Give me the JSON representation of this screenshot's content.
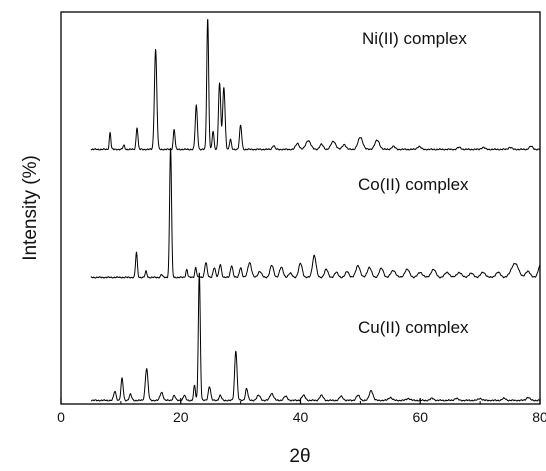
{
  "chart_data": {
    "type": "line",
    "title": "",
    "xlabel": "2θ",
    "ylabel": "Intensity (%)",
    "xlim": [
      0,
      80
    ],
    "xticks": [
      0,
      20,
      40,
      60,
      80
    ],
    "y_ticks_shown": false,
    "grid": false,
    "legend": "none (series labels placed above each trace)",
    "series": [
      {
        "name": "Ni(II) complex",
        "color": "#000000",
        "baseline": 150,
        "x_start": 5,
        "x_end": 80,
        "peaks": [
          [
            8.2,
            17,
            0.13
          ],
          [
            10.5,
            4,
            0.15
          ],
          [
            12.7,
            22,
            0.15
          ],
          [
            15.8,
            100,
            0.2
          ],
          [
            18.9,
            20,
            0.15
          ],
          [
            22.6,
            44,
            0.18
          ],
          [
            24.5,
            131,
            0.16
          ],
          [
            25.4,
            18,
            0.15
          ],
          [
            26.4,
            45,
            0.15
          ],
          [
            26.6,
            37,
            0.15
          ],
          [
            27.2,
            62,
            0.2
          ],
          [
            28.3,
            10,
            0.15
          ],
          [
            30.0,
            24,
            0.18
          ],
          [
            35.5,
            4,
            0.2
          ],
          [
            39.5,
            6,
            0.3
          ],
          [
            41.3,
            9,
            0.4
          ],
          [
            43.5,
            5,
            0.3
          ],
          [
            45.5,
            8,
            0.4
          ],
          [
            47.3,
            5,
            0.3
          ],
          [
            50.0,
            12,
            0.4
          ],
          [
            52.8,
            9,
            0.4
          ],
          [
            55.5,
            3,
            0.3
          ],
          [
            59.8,
            3,
            0.3
          ],
          [
            66.5,
            2,
            0.3
          ],
          [
            70.5,
            2,
            0.3
          ],
          [
            75.0,
            2,
            0.3
          ],
          [
            78.5,
            3,
            0.3
          ]
        ]
      },
      {
        "name": "Co(II) complex",
        "color": "#000000",
        "baseline": 278,
        "x_start": 5,
        "x_end": 80,
        "peaks": [
          [
            12.6,
            25,
            0.15
          ],
          [
            14.2,
            6,
            0.15
          ],
          [
            16.8,
            3,
            0.15
          ],
          [
            18.3,
            130,
            0.16
          ],
          [
            21.0,
            8,
            0.15
          ],
          [
            22.5,
            10,
            0.15
          ],
          [
            24.2,
            15,
            0.2
          ],
          [
            25.6,
            10,
            0.2
          ],
          [
            26.6,
            13,
            0.2
          ],
          [
            28.5,
            12,
            0.2
          ],
          [
            30.0,
            10,
            0.2
          ],
          [
            31.5,
            15,
            0.3
          ],
          [
            33.2,
            6,
            0.3
          ],
          [
            35.2,
            12,
            0.3
          ],
          [
            36.8,
            10,
            0.3
          ],
          [
            38.3,
            4,
            0.3
          ],
          [
            40.0,
            14,
            0.3
          ],
          [
            42.3,
            22,
            0.3
          ],
          [
            44.3,
            8,
            0.3
          ],
          [
            46.0,
            5,
            0.3
          ],
          [
            47.8,
            6,
            0.3
          ],
          [
            49.6,
            12,
            0.35
          ],
          [
            51.5,
            10,
            0.35
          ],
          [
            53.5,
            9,
            0.35
          ],
          [
            55.5,
            7,
            0.4
          ],
          [
            57.8,
            8,
            0.4
          ],
          [
            60.0,
            5,
            0.4
          ],
          [
            62.2,
            8,
            0.4
          ],
          [
            64.5,
            5,
            0.4
          ],
          [
            66.5,
            5,
            0.4
          ],
          [
            68.5,
            4,
            0.4
          ],
          [
            70.5,
            5,
            0.4
          ],
          [
            73.0,
            5,
            0.4
          ],
          [
            75.8,
            14,
            0.6
          ],
          [
            78.0,
            6,
            0.4
          ],
          [
            80.0,
            12,
            0.3
          ]
        ]
      },
      {
        "name": "Cu(II) complex",
        "color": "#000000",
        "baseline": 401,
        "x_start": 5,
        "x_end": 80,
        "peaks": [
          [
            9.0,
            9,
            0.2
          ],
          [
            10.2,
            22,
            0.18
          ],
          [
            11.6,
            6,
            0.2
          ],
          [
            14.3,
            32,
            0.22
          ],
          [
            16.8,
            8,
            0.25
          ],
          [
            18.9,
            5,
            0.2
          ],
          [
            20.6,
            5,
            0.2
          ],
          [
            22.3,
            15,
            0.15
          ],
          [
            23.1,
            128,
            0.16
          ],
          [
            24.8,
            14,
            0.2
          ],
          [
            26.6,
            5,
            0.2
          ],
          [
            29.2,
            50,
            0.2
          ],
          [
            31.0,
            12,
            0.2
          ],
          [
            33.0,
            5,
            0.3
          ],
          [
            35.2,
            7,
            0.3
          ],
          [
            37.5,
            4,
            0.3
          ],
          [
            40.5,
            5,
            0.3
          ],
          [
            43.5,
            5,
            0.3
          ],
          [
            46.8,
            4,
            0.3
          ],
          [
            49.6,
            5,
            0.3
          ],
          [
            51.8,
            10,
            0.3
          ],
          [
            55.0,
            3,
            0.3
          ],
          [
            58.0,
            2,
            0.3
          ],
          [
            62.0,
            2,
            0.3
          ],
          [
            66.0,
            2,
            0.3
          ],
          [
            70.0,
            2,
            0.3
          ],
          [
            74.0,
            2,
            0.3
          ],
          [
            78.0,
            3,
            0.3
          ]
        ]
      }
    ]
  }
}
